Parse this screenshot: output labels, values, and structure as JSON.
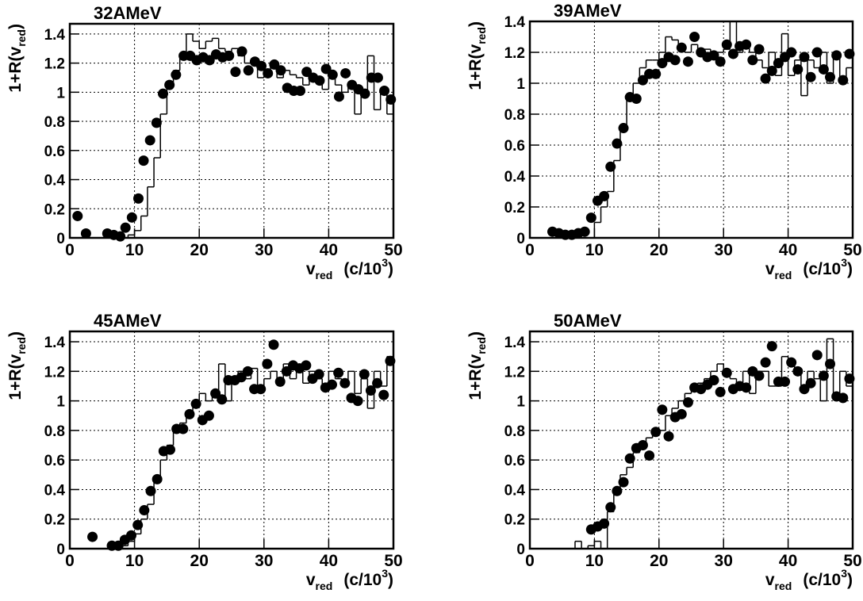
{
  "chart_data": [
    {
      "type": "scatter",
      "title": "32AMeV",
      "xlabel": {
        "main": "v",
        "sub": "red",
        "mid": "(c/10",
        "sup": "3",
        "close": ")"
      },
      "ylabel": {
        "main": "1+R(v",
        "sub": "red",
        "close": ")"
      },
      "xlim": [
        0,
        50
      ],
      "ylim": [
        0,
        1.47
      ],
      "xticks": [
        0,
        10,
        20,
        30,
        40,
        50
      ],
      "yticks": [
        0,
        0.2,
        0.4,
        0.6,
        0.8,
        1,
        1.2,
        1.4
      ],
      "grid": true,
      "series": [
        {
          "color": "#000000",
          "x": [
            1.2,
            2.5,
            5.8,
            6.8,
            7.8,
            8.6,
            9.6,
            10.6,
            11.4,
            12.4,
            13.4,
            14.4,
            15.4,
            16.4,
            17.6,
            18.6,
            19.6,
            20.6,
            21.6,
            22.6,
            23.6,
            24.6,
            25.6,
            26.6,
            27.6,
            28.6,
            29.6,
            30.6,
            31.6,
            32.6,
            33.6,
            34.6,
            35.6,
            36.6,
            37.6,
            38.6,
            39.6,
            40.6,
            41.6,
            42.6,
            43.6,
            44.6,
            45.6,
            46.6,
            47.6,
            48.6,
            49.6
          ],
          "values": [
            0.15,
            0.03,
            0.03,
            0.02,
            0.01,
            0.07,
            0.14,
            0.27,
            0.53,
            0.67,
            0.79,
            0.99,
            1.05,
            1.12,
            1.25,
            1.25,
            1.22,
            1.24,
            1.22,
            1.26,
            1.24,
            1.25,
            1.14,
            1.28,
            1.15,
            1.21,
            1.18,
            1.13,
            1.19,
            1.15,
            1.03,
            1.01,
            1.01,
            1.14,
            1.1,
            1.08,
            1.16,
            1.12,
            0.97,
            1.13,
            1.05,
            1.02,
            0.99,
            1.1,
            1.1,
            1.01,
            0.95
          ]
        }
      ],
      "histogram": {
        "color": "#000000",
        "bins": [
          7,
          8,
          9,
          10,
          11,
          12,
          13,
          14,
          15,
          16,
          17,
          18,
          19,
          20,
          21,
          22,
          23,
          24,
          25,
          26,
          27,
          28,
          29,
          30,
          31,
          32,
          33,
          34,
          35,
          36,
          37,
          38,
          39,
          40,
          41,
          42,
          43,
          44,
          45,
          46,
          47,
          48,
          49,
          50
        ],
        "values": [
          0,
          0,
          0.02,
          0.05,
          0.15,
          0.35,
          0.55,
          0.85,
          1.05,
          1.15,
          1.25,
          1.4,
          1.35,
          1.3,
          1.35,
          1.37,
          1.3,
          1.28,
          1.3,
          1.25,
          1.2,
          1.22,
          1.1,
          1.15,
          1.2,
          1.1,
          1.15,
          1.12,
          1.1,
          1.05,
          1.12,
          1.08,
          1.02,
          1.1,
          1.05,
          1.0,
          1.05,
          0.85,
          1.0,
          1.25,
          0.88,
          1.0,
          0.85
        ]
      }
    },
    {
      "type": "scatter",
      "title": "39AMeV",
      "xlabel": {
        "main": "v",
        "sub": "red",
        "mid": "(c/10",
        "sup": "3",
        "close": ")"
      },
      "ylabel": {
        "main": "1+R(v",
        "sub": "red",
        "close": ")"
      },
      "xlim": [
        0,
        50
      ],
      "ylim": [
        0,
        1.4
      ],
      "xticks": [
        0,
        10,
        20,
        30,
        40,
        50
      ],
      "yticks": [
        0,
        0.2,
        0.4,
        0.6,
        0.8,
        1,
        1.2,
        1.4
      ],
      "grid": true,
      "series": [
        {
          "color": "#000000",
          "x": [
            3.5,
            4.5,
            5.5,
            6.5,
            7.5,
            8.5,
            9.5,
            10.5,
            11.5,
            12.5,
            13.5,
            14.5,
            15.5,
            16.5,
            17.5,
            18.5,
            19.5,
            20.5,
            21.5,
            22.5,
            23.5,
            24.5,
            25.5,
            26.5,
            27.5,
            28.5,
            29.5,
            30.5,
            31.5,
            32.5,
            33.5,
            34.5,
            35.5,
            36.5,
            37.5,
            38.5,
            39.5,
            40.5,
            41.5,
            42.5,
            43.5,
            44.5,
            45.5,
            46.5,
            47.5,
            48.5,
            49.5
          ],
          "values": [
            0.04,
            0.03,
            0.02,
            0.02,
            0.03,
            0.04,
            0.13,
            0.24,
            0.27,
            0.46,
            0.61,
            0.71,
            0.91,
            0.9,
            1.02,
            1.06,
            1.06,
            1.13,
            1.17,
            1.15,
            1.23,
            1.14,
            1.3,
            1.2,
            1.17,
            1.18,
            1.14,
            1.25,
            1.19,
            1.24,
            1.25,
            1.15,
            1.22,
            1.03,
            1.08,
            1.13,
            1.17,
            1.2,
            1.09,
            1.17,
            1.04,
            1.2,
            1.09,
            1.04,
            1.18,
            1.02,
            1.19
          ]
        }
      ],
      "histogram": {
        "color": "#000000",
        "bins": [
          4,
          5,
          6,
          7,
          8,
          9,
          10,
          11,
          12,
          13,
          14,
          15,
          16,
          17,
          18,
          19,
          20,
          21,
          22,
          23,
          24,
          25,
          26,
          27,
          28,
          29,
          30,
          31,
          32,
          33,
          34,
          35,
          36,
          37,
          38,
          39,
          40,
          41,
          42,
          43,
          44,
          45,
          46,
          47,
          48,
          49,
          50
        ],
        "values": [
          0,
          0,
          0,
          0,
          0,
          0,
          0.1,
          0.2,
          0.3,
          0.5,
          0.7,
          0.9,
          1.0,
          1.1,
          1.15,
          1.15,
          1.2,
          1.3,
          1.28,
          1.25,
          1.2,
          1.25,
          1.2,
          1.22,
          1.18,
          1.2,
          1.22,
          1.4,
          1.2,
          1.25,
          1.2,
          1.15,
          1.1,
          1.2,
          1.05,
          1.32,
          1.05,
          1.15,
          0.92,
          1.15,
          1.1,
          1.2,
          1.0,
          1.2,
          1.0,
          1.1
        ]
      }
    },
    {
      "type": "scatter",
      "title": "45AMeV",
      "xlabel": {
        "main": "v",
        "sub": "red",
        "mid": "(c/10",
        "sup": "3",
        "close": ")"
      },
      "ylabel": {
        "main": "1+R(v",
        "sub": "red",
        "close": ")"
      },
      "xlim": [
        0,
        50
      ],
      "ylim": [
        0,
        1.47
      ],
      "xticks": [
        0,
        10,
        20,
        30,
        40,
        50
      ],
      "yticks": [
        0,
        0.2,
        0.4,
        0.6,
        0.8,
        1,
        1.2,
        1.4
      ],
      "grid": true,
      "series": [
        {
          "color": "#000000",
          "x": [
            3.5,
            6.5,
            7.5,
            8.5,
            9.5,
            10.5,
            11.5,
            12.5,
            13.5,
            14.5,
            15.5,
            16.5,
            17.5,
            18.5,
            19.5,
            20.5,
            21.5,
            22.5,
            23.5,
            24.5,
            25.5,
            26.5,
            27.5,
            28.5,
            29.5,
            30.5,
            31.5,
            32.5,
            33.5,
            34.5,
            35.5,
            36.5,
            37.5,
            38.5,
            39.5,
            40.5,
            41.5,
            42.5,
            43.5,
            44.5,
            45.5,
            46.5,
            47.5,
            48.5,
            49.5
          ],
          "values": [
            0.08,
            0.02,
            0.02,
            0.06,
            0.09,
            0.16,
            0.26,
            0.39,
            0.47,
            0.66,
            0.67,
            0.81,
            0.81,
            0.91,
            0.98,
            0.87,
            0.9,
            1.05,
            1.01,
            1.14,
            1.14,
            1.16,
            1.2,
            1.08,
            1.08,
            1.25,
            1.38,
            1.13,
            1.2,
            1.24,
            1.22,
            1.24,
            1.15,
            1.18,
            1.09,
            1.11,
            1.19,
            1.12,
            1.02,
            1.0,
            1.18,
            1.07,
            1.12,
            1.04,
            1.27
          ]
        }
      ],
      "histogram": {
        "color": "#000000",
        "bins": [
          7,
          8,
          9,
          10,
          11,
          12,
          13,
          14,
          15,
          16,
          17,
          18,
          19,
          20,
          21,
          22,
          23,
          24,
          25,
          26,
          27,
          28,
          29,
          30,
          31,
          32,
          33,
          34,
          35,
          36,
          37,
          38,
          39,
          40,
          41,
          42,
          43,
          44,
          45,
          46,
          47,
          48,
          49,
          50
        ],
        "values": [
          0,
          0.02,
          0.05,
          0.1,
          0.2,
          0.3,
          0.45,
          0.6,
          0.7,
          0.82,
          0.85,
          0.9,
          1.0,
          1.05,
          1.0,
          1.05,
          1.25,
          1.0,
          1.15,
          1.2,
          1.15,
          1.22,
          1.1,
          1.15,
          1.2,
          1.15,
          1.25,
          1.15,
          1.2,
          1.12,
          1.2,
          1.15,
          1.1,
          1.2,
          1.15,
          1.1,
          1.2,
          1.05,
          1.15,
          0.95,
          1.2,
          1.1,
          1.3
        ]
      }
    },
    {
      "type": "scatter",
      "title": "50AMeV",
      "xlabel": {
        "main": "v",
        "sub": "red",
        "mid": "(c/10",
        "sup": "3",
        "close": ")"
      },
      "ylabel": {
        "main": "1+R(v",
        "sub": "red",
        "close": ")"
      },
      "xlim": [
        0,
        50
      ],
      "ylim": [
        0,
        1.47
      ],
      "xticks": [
        0,
        10,
        20,
        30,
        40,
        50
      ],
      "yticks": [
        0,
        0.2,
        0.4,
        0.6,
        0.8,
        1,
        1.2,
        1.4
      ],
      "grid": true,
      "series": [
        {
          "color": "#000000",
          "x": [
            9.5,
            10.5,
            11.5,
            12.5,
            13.5,
            14.5,
            15.5,
            16.5,
            17.5,
            18.5,
            19.5,
            20.5,
            21.5,
            22.5,
            23.5,
            24.5,
            25.5,
            26.5,
            27.5,
            28.5,
            29.5,
            30.5,
            31.5,
            32.5,
            33.5,
            34.5,
            35.5,
            36.5,
            37.5,
            38.5,
            39.5,
            40.5,
            41.5,
            42.5,
            43.5,
            44.5,
            45.5,
            46.5,
            47.5,
            48.5,
            49.5
          ],
          "values": [
            0.13,
            0.15,
            0.17,
            0.28,
            0.39,
            0.45,
            0.61,
            0.68,
            0.7,
            0.63,
            0.79,
            0.94,
            0.76,
            0.89,
            0.91,
            0.99,
            1.09,
            1.08,
            1.11,
            1.14,
            1.06,
            1.19,
            1.08,
            1.1,
            1.09,
            1.2,
            1.17,
            1.26,
            1.37,
            1.13,
            1.13,
            1.26,
            1.2,
            1.08,
            1.12,
            1.31,
            1.17,
            1.25,
            1.03,
            1.02,
            1.15
          ]
        }
      ],
      "histogram": {
        "color": "#000000",
        "bins": [
          7,
          8,
          9,
          10,
          11,
          12,
          13,
          14,
          15,
          16,
          17,
          18,
          19,
          20,
          21,
          22,
          23,
          24,
          25,
          26,
          27,
          28,
          29,
          30,
          31,
          32,
          33,
          34,
          35,
          36,
          37,
          38,
          39,
          40,
          41,
          42,
          43,
          44,
          45,
          46,
          47,
          48,
          49,
          50
        ],
        "values": [
          0.05,
          0,
          0.02,
          0.05,
          0,
          0.25,
          0.4,
          0.5,
          0.55,
          0.65,
          0.7,
          0.75,
          0.8,
          0.8,
          0.9,
          0.95,
          1.0,
          1.05,
          1.1,
          1.12,
          1.15,
          1.2,
          1.25,
          1.2,
          1.15,
          1.1,
          1.2,
          1.05,
          1.2,
          1.2,
          1.1,
          1.1,
          1.3,
          1.25,
          1.2,
          1.1,
          1.2,
          1.15,
          1.0,
          1.42,
          1.05,
          1.2,
          1.1
        ]
      }
    }
  ]
}
